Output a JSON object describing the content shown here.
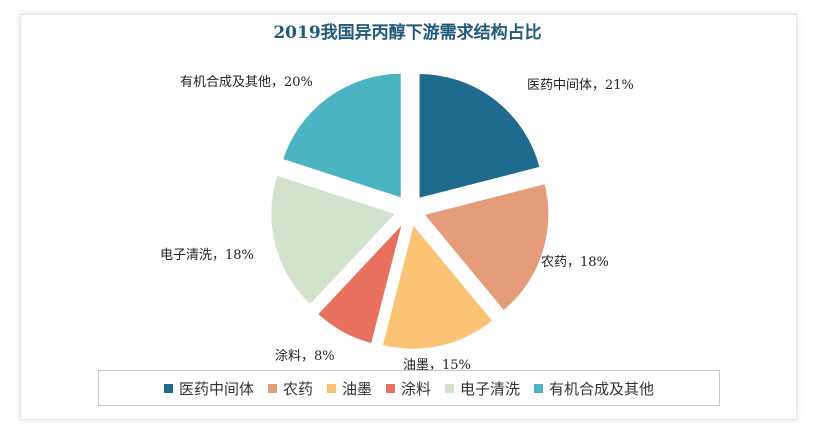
{
  "chart_data": {
    "type": "pie",
    "title": "2019我国异丙醇下游需求结构占比",
    "slices": [
      {
        "name": "医药中间体",
        "value": 21,
        "label": "医药中间体，21%",
        "color": "#1f6b8e"
      },
      {
        "name": "农药",
        "value": 18,
        "label": "农药，18%",
        "color": "#e59c7b"
      },
      {
        "name": "油墨",
        "value": 15,
        "label": "油墨，15%",
        "color": "#fcc374"
      },
      {
        "name": "涂料",
        "value": 8,
        "label": "涂料，8%",
        "color": "#e8705e"
      },
      {
        "name": "电子清洗",
        "value": 18,
        "label": "电子清洗，18%",
        "color": "#d3e2cc"
      },
      {
        "name": "有机合成及其他",
        "value": 20,
        "label": "有机合成及其他，20%",
        "color": "#4bb3c1"
      }
    ],
    "legend_position": "bottom"
  }
}
